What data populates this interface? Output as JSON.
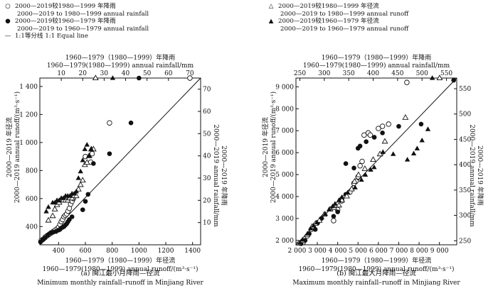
{
  "legend_left": [
    {
      "symbol": "open-circle",
      "cn": "2000—2019较1980—1999 年降雨",
      "en": "2000—2019 to 1980—1999 annual rainfall"
    },
    {
      "symbol": "filled-circle",
      "cn": "2000—2019较1960—1979 年降雨",
      "en": "2000—2019 to 1960—1979 annual rainfall"
    },
    {
      "symbol": "line",
      "cn": "1:1等分线 1:1 Equal line",
      "en": ""
    }
  ],
  "legend_right": [
    {
      "symbol": "open-triangle",
      "cn": "2000—2019较1980—1999 年径流",
      "en": "2000—2019 to 1980—1999 annual runoff"
    },
    {
      "symbol": "filled-triangle",
      "cn": "2000—2019较1960—1979 年径流",
      "en": "2000—2019 to 1960—1979 annual runoff"
    }
  ],
  "chart_data": [
    {
      "id": "a",
      "type": "scatter",
      "title": "(a) 闽江最小月降雨—径流",
      "subtitle": "Minimum monthly rainfall–runoff in Minjiang River",
      "top_axis_cn": "1960—1979（1980—1999）年降雨",
      "top_axis_en": "1960—1979(1980—1999) annual rainfall/mm",
      "bottom_axis_cn": "1960—1979（1980—1999）年径流",
      "bottom_axis_en": "1960—1979(1980—1999) annual runoff/(m³·s⁻¹)",
      "left_axis_cn": "2000—2019 年径流",
      "left_axis_en": "2000—2019 annual runoff/(m³·s⁻¹)",
      "right_axis_cn": "2000—2019 年降雨",
      "right_axis_en": "2000—2019 annual rainfall/mm",
      "runoff_xlim": [
        260,
        1460
      ],
      "runoff_ylim": [
        270,
        1460
      ],
      "rain_xlim": [
        0,
        75
      ],
      "rain_ylim": [
        0,
        75
      ],
      "bottom_ticks": [
        400,
        600,
        800,
        1000,
        1200,
        1400
      ],
      "left_ticks": [
        400,
        600,
        800,
        1000,
        1200,
        1400
      ],
      "left_tick_labels": [
        "400",
        "600",
        "800",
        "1 000",
        "1 200",
        "1 400"
      ],
      "top_ticks": [
        10,
        20,
        30,
        40,
        50,
        60,
        70
      ],
      "right_ticks": [
        10,
        20,
        30,
        40,
        50,
        60,
        70
      ],
      "equal_line": [
        [
          260,
          270
        ],
        [
          1460,
          1460
        ]
      ],
      "series": [
        {
          "name": "2000—2019 to 1980—1999 annual rainfall",
          "marker": "open-circle",
          "axes": "runoff",
          "points": [
            [
              270,
              300
            ],
            [
              285,
              310
            ],
            [
              300,
              325
            ],
            [
              315,
              335
            ],
            [
              330,
              345
            ],
            [
              345,
              355
            ],
            [
              360,
              365
            ],
            [
              375,
              375
            ],
            [
              390,
              385
            ],
            [
              400,
              395
            ],
            [
              410,
              415
            ],
            [
              420,
              435
            ],
            [
              430,
              450
            ],
            [
              440,
              470
            ],
            [
              450,
              480
            ],
            [
              460,
              490
            ],
            [
              470,
              510
            ],
            [
              480,
              530
            ],
            [
              490,
              560
            ],
            [
              500,
              580
            ],
            [
              510,
              600
            ],
            [
              520,
              620
            ],
            [
              600,
              900
            ],
            [
              640,
              860
            ],
            [
              650,
              920
            ],
            [
              780,
              1140
            ],
            [
              1380,
              1460
            ]
          ]
        },
        {
          "name": "2000—2019 to 1960—1979 annual rainfall",
          "marker": "filled-circle",
          "axes": "runoff",
          "points": [
            [
              265,
              290
            ],
            [
              280,
              305
            ],
            [
              300,
              320
            ],
            [
              320,
              340
            ],
            [
              340,
              355
            ],
            [
              360,
              360
            ],
            [
              380,
              365
            ],
            [
              400,
              375
            ],
            [
              410,
              380
            ],
            [
              420,
              390
            ],
            [
              430,
              395
            ],
            [
              440,
              400
            ],
            [
              450,
              410
            ],
            [
              460,
              420
            ],
            [
              470,
              435
            ],
            [
              480,
              450
            ],
            [
              500,
              470
            ],
            [
              580,
              520
            ],
            [
              600,
              580
            ],
            [
              620,
              630
            ],
            [
              660,
              850
            ],
            [
              780,
              920
            ],
            [
              940,
              1140
            ],
            [
              1000,
              1460
            ]
          ]
        },
        {
          "name": "2000—2019 to 1980—1999 annual runoff",
          "marker": "open-triangle",
          "axes": "rain",
          "points": [
            [
              4,
              11
            ],
            [
              6,
              13
            ],
            [
              7,
              16
            ],
            [
              8,
              18
            ],
            [
              9,
              19
            ],
            [
              10,
              20
            ],
            [
              11,
              20
            ],
            [
              12,
              20
            ],
            [
              13,
              20
            ],
            [
              14,
              21
            ],
            [
              15,
              21
            ],
            [
              16,
              22
            ],
            [
              17,
              22
            ],
            [
              18,
              25
            ],
            [
              19,
              27
            ],
            [
              20,
              29
            ],
            [
              21,
              36
            ],
            [
              22,
              37
            ],
            [
              23,
              40
            ],
            [
              24,
              43
            ],
            [
              25,
              43
            ],
            [
              26,
              75
            ]
          ]
        },
        {
          "name": "2000—2019 to 1960—1979 annual runoff",
          "marker": "filled-triangle",
          "axes": "rain",
          "points": [
            [
              3,
              15
            ],
            [
              4,
              17
            ],
            [
              6,
              19
            ],
            [
              7,
              19
            ],
            [
              8,
              20
            ],
            [
              9,
              20
            ],
            [
              10,
              21
            ],
            [
              11,
              21
            ],
            [
              12,
              22
            ],
            [
              13,
              22
            ],
            [
              14,
              22
            ],
            [
              15,
              23
            ],
            [
              16,
              23
            ],
            [
              17,
              24
            ],
            [
              18,
              30
            ],
            [
              19,
              33
            ],
            [
              20,
              38
            ],
            [
              21,
              43
            ],
            [
              22,
              45
            ],
            [
              23,
              40
            ],
            [
              24,
              43
            ],
            [
              34,
              75
            ]
          ]
        }
      ]
    },
    {
      "id": "b",
      "type": "scatter",
      "title": "(b) 闽江最大月降雨—径流",
      "subtitle": "Maximum monthly rainfall–runoff in Minjiang River",
      "top_axis_cn": "1960—1979（1980—1999）年降雨",
      "top_axis_en": "1960—1979(1980—1999) annual rainfall/mm",
      "bottom_axis_cn": "1960—1979（1980—1999）年径流",
      "bottom_axis_en": "1960—1979(1980—1999) annual runoff/(m³·s⁻¹)",
      "left_axis_cn": "2000—2019 年径流",
      "left_axis_en": "2000—2019 annual runoff/(m³·s⁻¹)",
      "right_axis_cn": "2000—2019 年降雨",
      "right_axis_en": "2000—2019 annual rainfall/mm",
      "runoff_xlim": [
        1950,
        9850
      ],
      "runoff_ylim": [
        1800,
        9400
      ],
      "rain_xlim": [
        242,
        571
      ],
      "rain_ylim": [
        242,
        571
      ],
      "bottom_ticks": [
        2000,
        3000,
        4000,
        5000,
        6000,
        7000,
        8000,
        9000
      ],
      "bottom_tick_labels": [
        "2 000",
        "3 000",
        "4 000",
        "5 000",
        "6 000",
        "7 000",
        "8 000",
        "9 000"
      ],
      "left_ticks": [
        2000,
        3000,
        4000,
        5000,
        6000,
        7000,
        8000,
        9000
      ],
      "left_tick_labels": [
        "2 000",
        "3 000",
        "4 000",
        "5 000",
        "6 000",
        "7 000",
        "8 000",
        "9 000"
      ],
      "top_ticks": [
        250,
        300,
        350,
        400,
        450,
        500,
        550
      ],
      "right_ticks": [
        250,
        300,
        350,
        400,
        450,
        500,
        550
      ],
      "equal_line": [
        [
          1950,
          1800
        ],
        [
          9850,
          9400
        ]
      ],
      "series": [
        {
          "name": "2000—2019 to 1980—1999 annual rainfall",
          "marker": "open-circle",
          "axes": "runoff",
          "points": [
            [
              2300,
              1900
            ],
            [
              2500,
              2200
            ],
            [
              2700,
              2500
            ],
            [
              2800,
              2600
            ],
            [
              3000,
              2800
            ],
            [
              3800,
              2900
            ],
            [
              4000,
              3400
            ],
            [
              4200,
              3800
            ],
            [
              4600,
              4200
            ],
            [
              4800,
              4600
            ],
            [
              4900,
              4700
            ],
            [
              5000,
              4900
            ],
            [
              5100,
              5400
            ],
            [
              5200,
              5600
            ],
            [
              5300,
              6800
            ],
            [
              5500,
              6900
            ],
            [
              5600,
              6800
            ],
            [
              6000,
              7100
            ],
            [
              6200,
              7200
            ],
            [
              6500,
              7300
            ],
            [
              7400,
              9200
            ]
          ]
        },
        {
          "name": "2000—2019 to 1960—1979 annual rainfall",
          "marker": "filled-circle",
          "axes": "runoff",
          "points": [
            [
              2200,
              1850
            ],
            [
              2400,
              2000
            ],
            [
              2600,
              2300
            ],
            [
              2900,
              2500
            ],
            [
              3000,
              2800
            ],
            [
              3200,
              3000
            ],
            [
              3800,
              3100
            ],
            [
              4000,
              3300
            ],
            [
              4200,
              3900
            ],
            [
              4400,
              4100
            ],
            [
              4400,
              5500
            ],
            [
              4800,
              5300
            ],
            [
              5000,
              6200
            ],
            [
              5100,
              6300
            ],
            [
              5400,
              6500
            ],
            [
              5800,
              6700
            ],
            [
              6200,
              6900
            ],
            [
              7000,
              7200
            ],
            [
              8100,
              7300
            ],
            [
              9700,
              9300
            ]
          ]
        },
        {
          "name": "2000—2019 to 1980—1999 annual runoff",
          "marker": "open-triangle",
          "axes": "rain",
          "points": [
            [
              248,
              245
            ],
            [
              255,
              250
            ],
            [
              265,
              262
            ],
            [
              275,
              278
            ],
            [
              282,
              284
            ],
            [
              290,
              290
            ],
            [
              300,
              302
            ],
            [
              312,
              312
            ],
            [
              320,
              315
            ],
            [
              330,
              320
            ],
            [
              336,
              330
            ],
            [
              346,
              338
            ],
            [
              356,
              352
            ],
            [
              362,
              367
            ],
            [
              370,
              380
            ],
            [
              383,
              392
            ],
            [
              400,
              410
            ],
            [
              414,
              421
            ],
            [
              424,
              446
            ],
            [
              466,
              493
            ],
            [
              536,
              571
            ]
          ]
        },
        {
          "name": "2000—2019 to 1960—1979 annual runoff",
          "marker": "filled-triangle",
          "axes": "rain",
          "points": [
            [
              250,
              246
            ],
            [
              256,
              252
            ],
            [
              266,
              264
            ],
            [
              272,
              274
            ],
            [
              278,
              280
            ],
            [
              285,
              286
            ],
            [
              295,
              296
            ],
            [
              302,
              303
            ],
            [
              310,
              312
            ],
            [
              317,
              318
            ],
            [
              322,
              323
            ],
            [
              330,
              330
            ],
            [
              336,
              336
            ],
            [
              348,
              345
            ],
            [
              363,
              355
            ],
            [
              376,
              370
            ],
            [
              384,
              380
            ],
            [
              395,
              390
            ],
            [
              402,
              395
            ],
            [
              420,
              425
            ],
            [
              441,
              421
            ],
            [
              470,
              410
            ],
            [
              483,
              422
            ],
            [
              490,
              432
            ],
            [
              500,
              448
            ],
            [
              512,
              470
            ],
            [
              521,
              571
            ]
          ]
        }
      ]
    }
  ]
}
